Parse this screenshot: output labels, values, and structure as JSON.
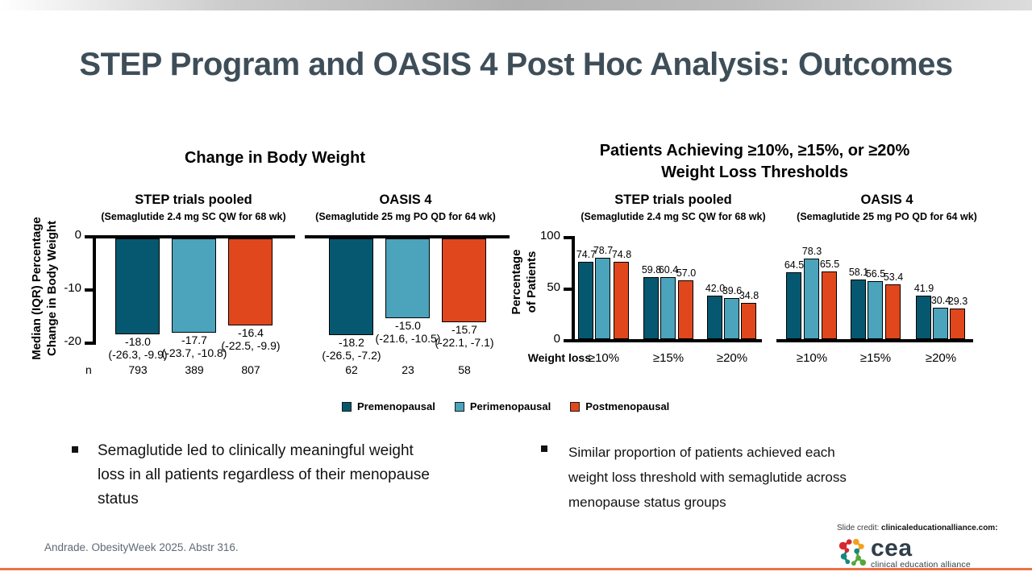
{
  "slide": {
    "title": "STEP Program and OASIS 4 Post Hoc Analysis: Outcomes",
    "footer_citation": "Andrade. ObesityWeek 2025. Abstr 316.",
    "slide_credit": {
      "prefix": "Slide credit:",
      "source": "clinicaleducationalliance.com:"
    },
    "logo": {
      "wordmark": "cea",
      "tagline": "clinical education alliance"
    }
  },
  "colors": {
    "series": [
      "#05586f",
      "#4ba3bc",
      "#e0471d"
    ],
    "title": "#3e4e59",
    "accent_line": "#ed7146",
    "footer_text": "#5d6a76",
    "logo_text": "#2f3e49",
    "logo_palette": [
      "#d7282f",
      "#f2a11c",
      "#13897d",
      "#57a63d"
    ]
  },
  "legend": [
    {
      "label": "Premenopausal",
      "color": "#05586f"
    },
    {
      "label": "Perimenopausal",
      "color": "#4ba3bc"
    },
    {
      "label": "Postmenopausal",
      "color": "#e0471d"
    }
  ],
  "bullets": [
    {
      "lines": [
        "Semaglutide led to clinically meaningful weight",
        "loss in all patients regardless of their menopause",
        "status"
      ]
    },
    {
      "lines": [
        "Similar proportion of patients achieved each",
        "weight loss threshold with semaglutide across",
        "menopause status groups"
      ]
    }
  ],
  "chart_data": [
    {
      "type": "bar",
      "title": "Change in Body Weight",
      "ylabel": "Median (IQR) Percentage Change in Body Weight",
      "ylabel_lines": [
        "Median (IQR) Percentage",
        "Change in Body Weight"
      ],
      "ylim": [
        -20,
        0
      ],
      "yticks": [
        0,
        -10,
        -20
      ],
      "series_names": [
        "Premenopausal",
        "Perimenopausal",
        "Postmenopausal"
      ],
      "panels": [
        {
          "title": "STEP trials pooled",
          "subtitle": "(Semaglutide 2.4 mg SC QW for 68 wk)",
          "values": [
            -18.0,
            -17.7,
            -16.4
          ],
          "value_labels": [
            "-18.0",
            "-17.7",
            "-16.4"
          ],
          "iqr_labels": [
            "(-26.3, -9.9)",
            "(-23.7, -10.8)",
            "(-22.5, -9.9)"
          ],
          "n_header": "n",
          "n_values": [
            "793",
            "389",
            "807"
          ]
        },
        {
          "title": "OASIS 4",
          "subtitle": "(Semaglutide 25 mg PO QD for 64 wk)",
          "values": [
            -18.2,
            -15.0,
            -15.7
          ],
          "value_labels": [
            "-18.2",
            "-15.0",
            "-15.7"
          ],
          "iqr_labels": [
            "(-26.5, -7.2)",
            "(-21.6, -10.5)",
            "(-22.1, -7.1)"
          ],
          "n_values": [
            "62",
            "23",
            "58"
          ]
        }
      ]
    },
    {
      "type": "bar",
      "title": "Patients Achieving ≥10%, ≥15%, or ≥20% Weight Loss Thresholds",
      "title_lines": [
        "Patients Achieving ≥10%, ≥15%, or ≥20%",
        "Weight Loss Thresholds"
      ],
      "ylabel": "Percentage of Patients",
      "ylabel_lines": [
        "Percentage",
        "of Patients"
      ],
      "xlabel": "Weight loss",
      "ylim": [
        0,
        100
      ],
      "yticks": [
        100,
        50,
        0
      ],
      "categories": [
        "≥10%",
        "≥15%",
        "≥20%"
      ],
      "panels": [
        {
          "title": "STEP trials pooled",
          "subtitle": "(Semaglutide 2.4 mg SC QW for 68 wk)",
          "series": [
            {
              "name": "Premenopausal",
              "values": [
                74.7,
                59.8,
                42.0
              ]
            },
            {
              "name": "Perimenopausal",
              "values": [
                78.7,
                60.4,
                39.6
              ]
            },
            {
              "name": "Postmenopausal",
              "values": [
                74.8,
                57.0,
                34.8
              ]
            }
          ]
        },
        {
          "title": "OASIS 4",
          "subtitle": "(Semaglutide 25 mg PO QD for 64 wk)",
          "series": [
            {
              "name": "Premenopausal",
              "values": [
                64.5,
                58.1,
                41.9
              ]
            },
            {
              "name": "Perimenopausal",
              "values": [
                78.3,
                56.5,
                30.4
              ]
            },
            {
              "name": "Postmenopausal",
              "values": [
                65.5,
                53.4,
                29.3
              ]
            }
          ]
        }
      ]
    }
  ]
}
